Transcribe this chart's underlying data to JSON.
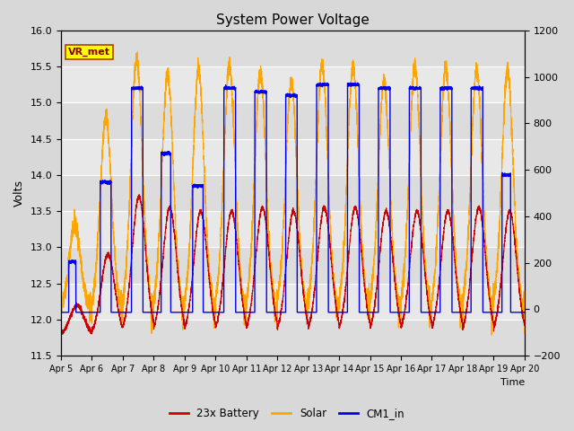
{
  "title": "System Power Voltage",
  "xlabel": "Time",
  "ylabel_left": "Volts",
  "ylim_left": [
    11.5,
    16.0
  ],
  "ylim_right": [
    -200,
    1200
  ],
  "yticks_left": [
    11.5,
    12.0,
    12.5,
    13.0,
    13.5,
    14.0,
    14.5,
    15.0,
    15.5,
    16.0
  ],
  "yticks_right": [
    -200,
    0,
    200,
    400,
    600,
    800,
    1000,
    1200
  ],
  "xticklabels": [
    "Apr 5",
    "Apr 6",
    "Apr 7",
    "Apr 8",
    "Apr 9",
    "Apr 10",
    "Apr 11",
    "Apr 12",
    "Apr 13",
    "Apr 14",
    "Apr 15",
    "Apr 16",
    "Apr 17",
    "Apr 18",
    "Apr 19",
    "Apr 20"
  ],
  "fig_bg": "#d8d8d8",
  "plot_bg": "#e8e8e8",
  "band_colors": [
    "#dcdcdc",
    "#e8e8e8"
  ],
  "grid_color": "#ffffff",
  "color_battery": "#cc0000",
  "color_solar": "#ffa500",
  "color_cm1": "#0000ee",
  "annotation_text": "VR_met",
  "annotation_box_facecolor": "#ffff00",
  "annotation_box_edgecolor": "#aa4400",
  "annotation_text_color": "#880000",
  "legend_labels": [
    "23x Battery",
    "Solar",
    "CM1_in"
  ],
  "seed": 42
}
